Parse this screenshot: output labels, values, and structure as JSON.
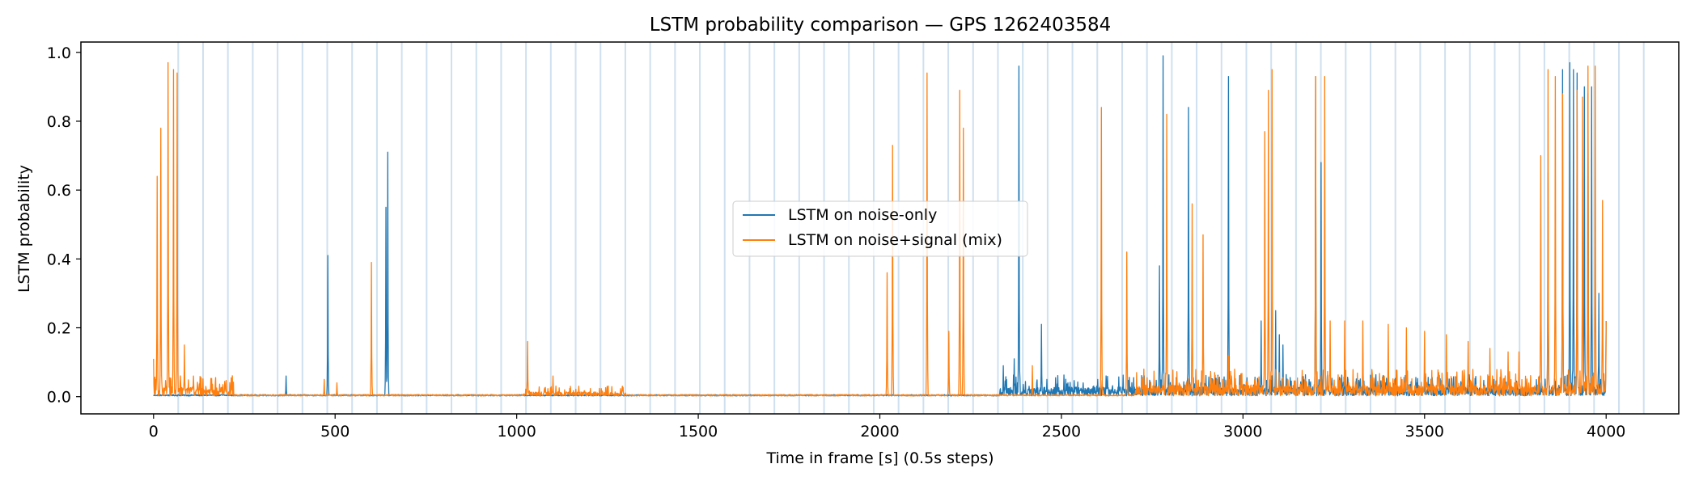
{
  "chart_data": {
    "type": "line",
    "title": "LSTM probability comparison — GPS 1262403584",
    "xlabel": "Time in frame [s] (0.5s steps)",
    "ylabel": "LSTM probability",
    "xlim": [
      -200,
      4200
    ],
    "ylim": [
      -0.05,
      1.03
    ],
    "xticks": [
      0,
      500,
      1000,
      1500,
      2000,
      2500,
      3000,
      3500,
      4000
    ],
    "yticks": [
      0.0,
      0.2,
      0.4,
      0.6,
      0.8,
      1.0
    ],
    "xtick_labels": [
      "0",
      "500",
      "1000",
      "1500",
      "2000",
      "2500",
      "3000",
      "3500",
      "4000"
    ],
    "ytick_labels": [
      "0.0",
      "0.2",
      "0.4",
      "0.6",
      "0.8",
      "1.0"
    ],
    "legend_position": "center",
    "frame_markers": {
      "start": 68,
      "step": 68.4,
      "count": 60,
      "end": 4120,
      "color": "#cfe0ef"
    },
    "series": [
      {
        "name": "LSTM on noise-only",
        "color": "#1f77b4",
        "spikes": [
          [
            365,
            0.06
          ],
          [
            480,
            0.41
          ],
          [
            645,
            0.71
          ],
          [
            640,
            0.55
          ],
          [
            2340,
            0.09
          ],
          [
            2370,
            0.11
          ],
          [
            2383,
            0.96
          ],
          [
            2445,
            0.21
          ],
          [
            2460,
            0.05
          ],
          [
            2560,
            0.04
          ],
          [
            2600,
            0.05
          ],
          [
            2770,
            0.38
          ],
          [
            2780,
            0.99
          ],
          [
            2850,
            0.84
          ],
          [
            2960,
            0.93
          ],
          [
            3050,
            0.22
          ],
          [
            3090,
            0.25
          ],
          [
            3100,
            0.18
          ],
          [
            3110,
            0.15
          ],
          [
            3200,
            0.93
          ],
          [
            3215,
            0.68
          ],
          [
            3840,
            0.65
          ],
          [
            3880,
            0.95
          ],
          [
            3900,
            0.97
          ],
          [
            3910,
            0.95
          ],
          [
            3920,
            0.94
          ],
          [
            3940,
            0.9
          ],
          [
            3950,
            0.88
          ],
          [
            3960,
            0.9
          ],
          [
            3980,
            0.3
          ],
          [
            4000,
            0.22
          ]
        ],
        "noise_regions": [
          [
            2330,
            4000,
            0.04
          ]
        ]
      },
      {
        "name": "LSTM on noise+signal (mix)",
        "color": "#ff7f0e",
        "spikes": [
          [
            0,
            0.11
          ],
          [
            10,
            0.64
          ],
          [
            20,
            0.78
          ],
          [
            40,
            0.97
          ],
          [
            55,
            0.95
          ],
          [
            65,
            0.94
          ],
          [
            85,
            0.15
          ],
          [
            110,
            0.06
          ],
          [
            200,
            0.04
          ],
          [
            470,
            0.05
          ],
          [
            505,
            0.04
          ],
          [
            600,
            0.39
          ],
          [
            1030,
            0.16
          ],
          [
            1100,
            0.06
          ],
          [
            2020,
            0.36
          ],
          [
            2035,
            0.73
          ],
          [
            2130,
            0.94
          ],
          [
            2190,
            0.19
          ],
          [
            2220,
            0.89
          ],
          [
            2230,
            0.78
          ],
          [
            2420,
            0.09
          ],
          [
            2610,
            0.84
          ],
          [
            2680,
            0.42
          ],
          [
            2790,
            0.82
          ],
          [
            2860,
            0.56
          ],
          [
            2890,
            0.47
          ],
          [
            2960,
            0.12
          ],
          [
            3060,
            0.77
          ],
          [
            3070,
            0.89
          ],
          [
            3080,
            0.95
          ],
          [
            3100,
            0.07
          ],
          [
            3200,
            0.93
          ],
          [
            3225,
            0.93
          ],
          [
            3240,
            0.22
          ],
          [
            3280,
            0.22
          ],
          [
            3330,
            0.22
          ],
          [
            3400,
            0.21
          ],
          [
            3450,
            0.2
          ],
          [
            3500,
            0.19
          ],
          [
            3560,
            0.18
          ],
          [
            3620,
            0.16
          ],
          [
            3680,
            0.14
          ],
          [
            3730,
            0.13
          ],
          [
            3760,
            0.13
          ],
          [
            3820,
            0.7
          ],
          [
            3840,
            0.95
          ],
          [
            3860,
            0.93
          ],
          [
            3880,
            0.88
          ],
          [
            3920,
            0.89
          ],
          [
            3935,
            0.87
          ],
          [
            3950,
            0.96
          ],
          [
            3970,
            0.96
          ],
          [
            3990,
            0.57
          ],
          [
            4000,
            0.22
          ]
        ],
        "noise_regions": [
          [
            0,
            220,
            0.04
          ],
          [
            1020,
            1300,
            0.02
          ],
          [
            2700,
            4000,
            0.05
          ]
        ]
      }
    ]
  }
}
